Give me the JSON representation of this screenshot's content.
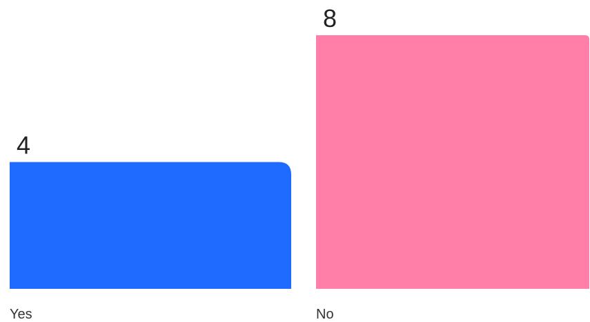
{
  "chart_data": {
    "type": "bar",
    "categories": [
      "Yes",
      "No"
    ],
    "values": [
      4,
      8
    ],
    "colors": [
      "#1f6bff",
      "#ff7fa8"
    ],
    "data_labels": [
      "4",
      "8"
    ],
    "title": "",
    "xlabel": "",
    "ylabel": "",
    "ylim": [
      0,
      8
    ],
    "grid": false,
    "legend": "none"
  }
}
